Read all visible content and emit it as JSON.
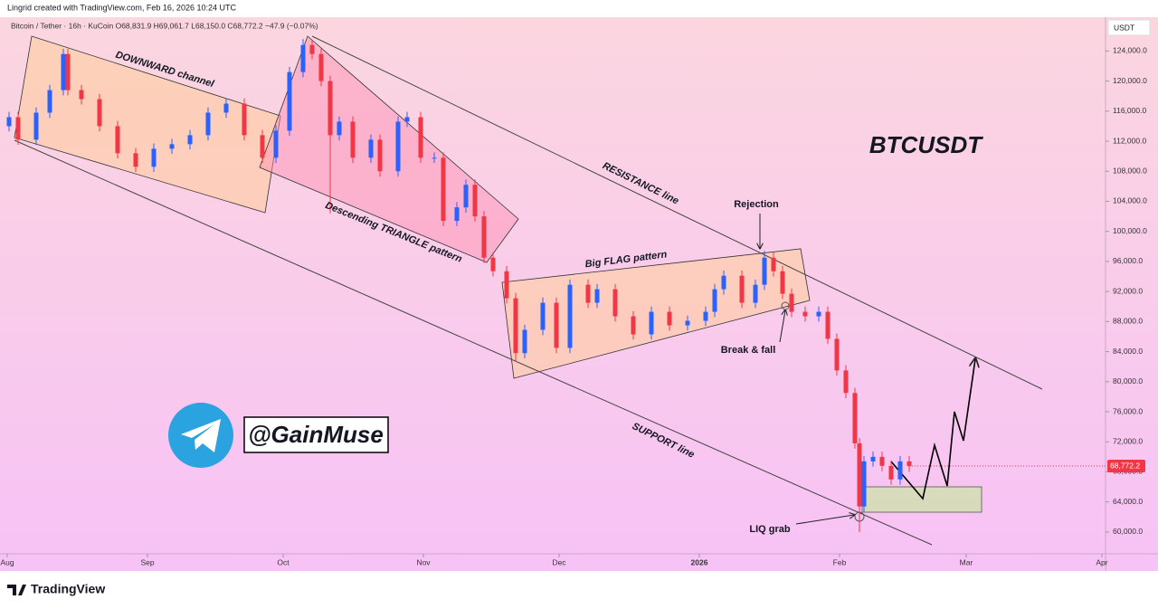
{
  "chart_data": {
    "type": "candlestick",
    "credit": "Lingrid created with TradingView.com, Feb 16, 2026 10:24 UTC",
    "subtitle": "Bitcoin / Tether · 16h · KuCoin  O68,831.9  H69,061.7  L68,150.0  C68,772.2  −47.9 (−0.07%)",
    "title": "BTCUSDT",
    "y_axis_label": "USDT",
    "annotations": [
      "DOWNWARD channel",
      "Descending TRIANGLE pattern",
      "RESISTANCE line",
      "Rejection",
      "Big FLAG pattern",
      "Break & fall",
      "SUPPORT line",
      "LIQ grab"
    ],
    "watermark": "@GainMuse",
    "brand": "TradingView",
    "last_label": "68,772.2",
    "up_color": "#2962ff",
    "down_color": "#f23645",
    "x": [
      0.4,
      2.4,
      6.4,
      9.4,
      12.4,
      13.4,
      16.4,
      20.4,
      24.4,
      28.4,
      32.4,
      36.4,
      40.4,
      44.4,
      48.4,
      52.4,
      56.4,
      59.4,
      62.4,
      65.4,
      67.4,
      69.4,
      71.4,
      73.4,
      76.4,
      80.4,
      82.4,
      86.4,
      88.4,
      91.4,
      94.4,
      96.4,
      99.4,
      101.4,
      103.4,
      105.4,
      107.4,
      110.4,
      112.4,
      114.4,
      118.4,
      121.4,
      124.4,
      128.4,
      130.4,
      134.4,
      138.4,
      142.4,
      146.4,
      150.4,
      154.4,
      156.4,
      158.4,
      162.4,
      165.4,
      167.4,
      169.4,
      171.4,
      173.4,
      176.4,
      179.4,
      181.4,
      183.4,
      185.4,
      187.4,
      188.4,
      189.4,
      191.4,
      193.4,
      195.4,
      197.4,
      199.4
    ],
    "open": [
      114000,
      115200,
      112200,
      115800,
      118800,
      123600,
      118800,
      117600,
      114000,
      110400,
      108600,
      111000,
      111600,
      112800,
      115800,
      117000,
      112800,
      109800,
      113400,
      121200,
      124800,
      123600,
      120000,
      112800,
      114600,
      109800,
      112200,
      108000,
      114600,
      115200,
      109800,
      109800,
      101400,
      103200,
      106200,
      102000,
      96500,
      94700,
      91100,
      83800,
      86900,
      90500,
      84500,
      92900,
      90500,
      92300,
      88700,
      86300,
      89300,
      87500,
      88100,
      89300,
      92300,
      94100,
      90500,
      92900,
      96500,
      94700,
      91700,
      89300,
      88700,
      89300,
      85700,
      81500,
      78500,
      71800,
      63400,
      69400,
      70000,
      68800,
      67000,
      69400
    ],
    "high": [
      115900,
      115900,
      116500,
      119500,
      124300,
      124300,
      119500,
      118300,
      114700,
      111100,
      111700,
      112300,
      113500,
      116500,
      117700,
      117700,
      113500,
      114100,
      121900,
      125600,
      125500,
      124300,
      120700,
      115300,
      115300,
      112900,
      112900,
      115300,
      115900,
      115900,
      110500,
      110500,
      103900,
      106900,
      106900,
      102700,
      97200,
      95400,
      91800,
      87600,
      91200,
      91200,
      93600,
      93600,
      93000,
      93000,
      89400,
      90000,
      90000,
      88800,
      90000,
      93000,
      94800,
      94800,
      93600,
      97400,
      97200,
      95400,
      92400,
      90000,
      90000,
      90000,
      86400,
      82200,
      79200,
      72500,
      70100,
      70700,
      70700,
      69500,
      70100,
      70100
    ],
    "low": [
      113300,
      111500,
      111500,
      115100,
      118100,
      118100,
      116900,
      113300,
      109700,
      107900,
      107900,
      110300,
      110900,
      112100,
      115100,
      112100,
      109100,
      109100,
      112700,
      120500,
      122900,
      119300,
      102400,
      112100,
      109100,
      109100,
      107300,
      107300,
      113900,
      109100,
      109100,
      100700,
      100700,
      102500,
      101300,
      95800,
      94000,
      90400,
      82700,
      83100,
      86200,
      83800,
      83800,
      89800,
      89800,
      88000,
      85600,
      85600,
      86800,
      86800,
      87400,
      88600,
      91600,
      89800,
      89800,
      92200,
      94000,
      91000,
      88600,
      88000,
      88000,
      85000,
      80800,
      77800,
      71100,
      60000,
      62700,
      68700,
      68100,
      66300,
      66300,
      68000
    ],
    "close": [
      115200,
      112200,
      115800,
      118800,
      123600,
      118800,
      117600,
      114000,
      110400,
      108600,
      111000,
      111600,
      112800,
      115800,
      117000,
      112800,
      109800,
      113400,
      121200,
      124800,
      123600,
      120000,
      112800,
      114600,
      109800,
      112200,
      108000,
      114600,
      115200,
      109800,
      109800,
      101400,
      103200,
      106200,
      102000,
      96500,
      94700,
      91100,
      83800,
      86900,
      90500,
      84500,
      92900,
      90500,
      92300,
      88700,
      86300,
      89300,
      87500,
      88100,
      89300,
      92300,
      94100,
      90500,
      92900,
      96500,
      94700,
      91700,
      89300,
      88700,
      89300,
      85700,
      81500,
      78500,
      71800,
      63400,
      69400,
      70000,
      68800,
      67000,
      69400,
      68772.2
    ],
    "xlim": [
      0,
      242.8
    ],
    "xticks": [
      {
        "value": 0,
        "label": "Aug"
      },
      {
        "value": 31,
        "label": "Sep"
      },
      {
        "value": 61,
        "label": "Oct"
      },
      {
        "value": 92,
        "label": "Nov"
      },
      {
        "value": 122,
        "label": "Dec"
      },
      {
        "value": 153,
        "label": "2026"
      },
      {
        "value": 184,
        "label": "Feb"
      },
      {
        "value": 212,
        "label": "Mar"
      },
      {
        "value": 242,
        "label": "Apr"
      }
    ],
    "ylim": [
      57100,
      128500
    ],
    "yticks": [
      {
        "value": 60000,
        "label": "60,000.0"
      },
      {
        "value": 64000,
        "label": "64,000.0"
      },
      {
        "value": 68000,
        "label": "68,000.0"
      },
      {
        "value": 72000,
        "label": "72,000.0"
      },
      {
        "value": 76000,
        "label": "76,000.0"
      },
      {
        "value": 80000,
        "label": "80,000.0"
      },
      {
        "value": 84000,
        "label": "84,000.0"
      },
      {
        "value": 88000,
        "label": "88,000.0"
      },
      {
        "value": 92000,
        "label": "92,000.0"
      },
      {
        "value": 96000,
        "label": "96,000.0"
      },
      {
        "value": 100000,
        "label": "100,000.0"
      },
      {
        "value": 104000,
        "label": "104,000.0"
      },
      {
        "value": 108000,
        "label": "108,000.0"
      },
      {
        "value": 112000,
        "label": "112,000.0"
      },
      {
        "value": 116000,
        "label": "116,000.0"
      },
      {
        "value": 120000,
        "label": "120,000.0"
      },
      {
        "value": 124000,
        "label": "124,000.0"
      }
    ]
  }
}
